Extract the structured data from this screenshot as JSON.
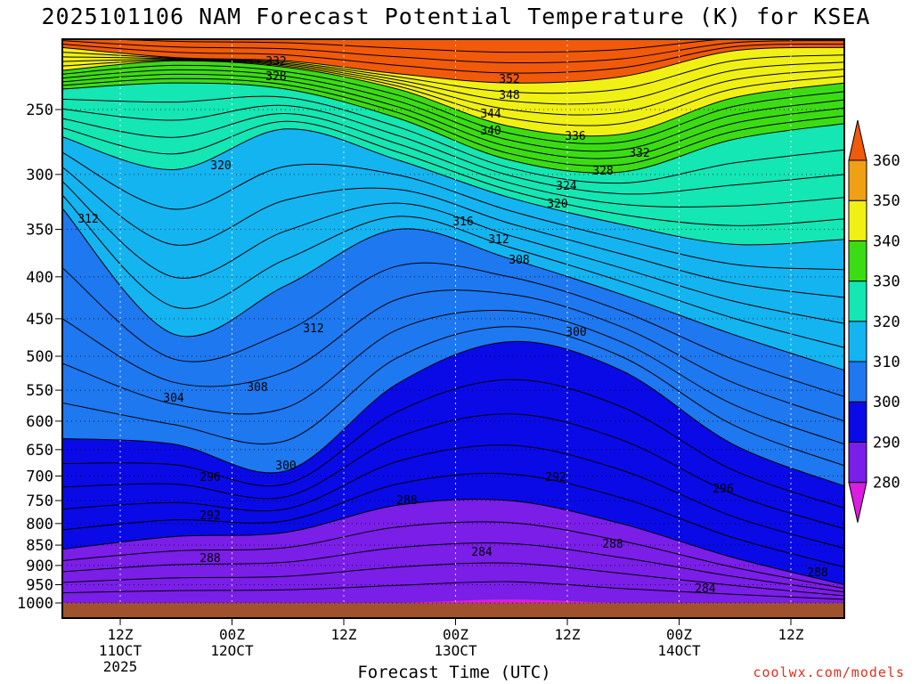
{
  "chart_data": {
    "type": "heatmap",
    "title": "2025101106 NAM Forecast Potential Temperature (K) for KSEA",
    "xlabel": "Forecast Time (UTC)",
    "ylabel": "",
    "y_scale": "log",
    "y_inverted": true,
    "ylim": [
      1000,
      200
    ],
    "y_ticks": [
      250,
      300,
      350,
      400,
      450,
      500,
      550,
      600,
      650,
      700,
      750,
      800,
      850,
      900,
      950,
      1000
    ],
    "x_ticks": [
      {
        "line1": "12Z",
        "line2": "11OCT",
        "line3": "2025"
      },
      {
        "line1": "00Z",
        "line2": "12OCT",
        "line3": ""
      },
      {
        "line1": "12Z",
        "line2": "",
        "line3": ""
      },
      {
        "line1": "00Z",
        "line2": "13OCT",
        "line3": ""
      },
      {
        "line1": "12Z",
        "line2": "",
        "line3": ""
      },
      {
        "line1": "00Z",
        "line2": "14OCT",
        "line3": ""
      },
      {
        "line1": "12Z",
        "line2": "",
        "line3": ""
      }
    ],
    "colorbar": {
      "labels": [
        280,
        290,
        300,
        310,
        320,
        330,
        340,
        350,
        360
      ],
      "colors": [
        "#d81ee0",
        "#7a1ee8",
        "#0a0ae6",
        "#1e78f0",
        "#14b4f0",
        "#14e6b4",
        "#3cdc14",
        "#f0f014",
        "#f0a014",
        "#f05a0a"
      ]
    },
    "contour_labels": [
      "352",
      "348",
      "344",
      "340",
      "336",
      "332",
      "332",
      "328",
      "328",
      "324",
      "320",
      "320",
      "316",
      "312",
      "312",
      "312",
      "308",
      "308",
      "304",
      "300",
      "300",
      "296",
      "296",
      "292",
      "292",
      "288",
      "288",
      "288",
      "288",
      "284",
      "284"
    ],
    "series": [
      {
        "value": 360,
        "pressure": [
          200,
          200,
          200,
          200,
          200,
          200,
          200,
          200
        ]
      },
      {
        "value": 350,
        "pressure": [
          210,
          216,
          218,
          226,
          232,
          228,
          212,
          210
        ]
      },
      {
        "value": 340,
        "pressure": [
          224,
          218,
          222,
          236,
          262,
          268,
          242,
          232
        ]
      },
      {
        "value": 330,
        "pressure": [
          236,
          232,
          236,
          256,
          288,
          298,
          272,
          260
        ]
      },
      {
        "value": 320,
        "pressure": [
          270,
          296,
          264,
          288,
          320,
          345,
          365,
          360
        ]
      },
      {
        "value": 310,
        "pressure": [
          330,
          470,
          410,
          350,
          380,
          420,
          470,
          520
        ]
      },
      {
        "value": 300,
        "pressure": [
          630,
          640,
          690,
          540,
          480,
          520,
          640,
          720
        ]
      },
      {
        "value": 290,
        "pressure": [
          860,
          830,
          820,
          760,
          750,
          800,
          880,
          950
        ]
      },
      {
        "value": 280,
        "pressure": [
          1000,
          1000,
          1000,
          1000,
          990,
          1000,
          1000,
          1000
        ]
      }
    ],
    "x_index": [
      0,
      1,
      2,
      3,
      4,
      5,
      6,
      7
    ]
  },
  "credit": "coolwx.com/models"
}
